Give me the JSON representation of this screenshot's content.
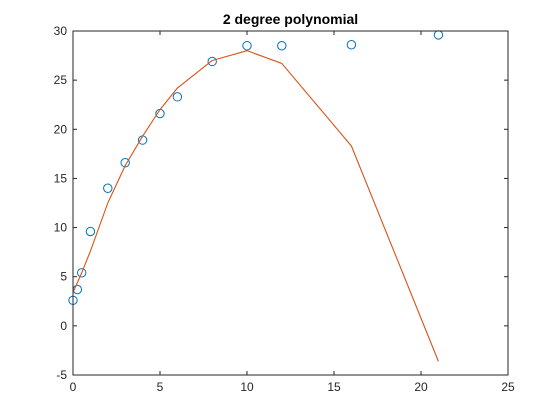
{
  "chart_data": {
    "type": "scatter",
    "title": "2 degree polynomial",
    "xlabel": "",
    "ylabel": "",
    "xlim": [
      0,
      25
    ],
    "ylim": [
      -5,
      30
    ],
    "x_ticks": [
      0,
      5,
      10,
      15,
      20,
      25
    ],
    "y_ticks": [
      -5,
      0,
      5,
      10,
      15,
      20,
      25,
      30
    ],
    "x_tick_labels": [
      "0",
      "5",
      "10",
      "15",
      "20",
      "25"
    ],
    "y_tick_labels": [
      "-5",
      "0",
      "5",
      "10",
      "15",
      "20",
      "25",
      "30"
    ],
    "grid": false,
    "legend": "none",
    "series": [
      {
        "kind": "markers",
        "marker": "circle",
        "color": "#0072BD",
        "x": [
          0,
          0.25,
          0.5,
          1,
          2,
          3,
          4,
          5,
          6,
          8,
          10,
          12,
          16,
          21
        ],
        "y": [
          2.6,
          3.7,
          5.4,
          9.6,
          14.0,
          16.6,
          18.9,
          21.6,
          23.3,
          26.9,
          28.5,
          28.5,
          28.6,
          29.6
        ]
      },
      {
        "kind": "line",
        "color": "#D95319",
        "x": [
          0,
          0.25,
          0.5,
          1,
          2,
          3,
          4,
          5,
          6,
          8,
          10,
          12,
          16,
          21
        ],
        "y": [
          3.4,
          4.4,
          5.4,
          7.6,
          12.5,
          16.3,
          19.3,
          22.0,
          24.2,
          27.0,
          28.0,
          26.7,
          18.3,
          -3.6
        ]
      }
    ]
  }
}
